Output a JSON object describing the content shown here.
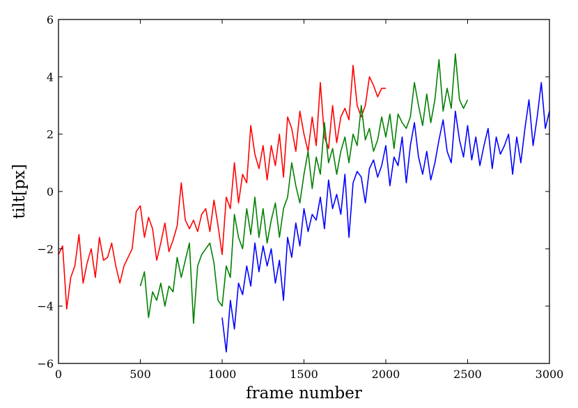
{
  "chart_data": {
    "type": "line",
    "title": "",
    "xlabel": "frame number",
    "ylabel": "tilt[px]",
    "xlim": [
      0,
      3000
    ],
    "ylim": [
      -6,
      6
    ],
    "xticks": [
      0,
      500,
      1000,
      1500,
      2000,
      2500,
      3000
    ],
    "yticks": [
      -6,
      -4,
      -2,
      0,
      2,
      4,
      6
    ],
    "xtick_labels": [
      "0",
      "500",
      "1000",
      "1500",
      "2000",
      "2500",
      "3000"
    ],
    "ytick_labels": [
      "−6",
      "−4",
      "−2",
      "0",
      "2",
      "4",
      "6"
    ],
    "grid": false,
    "legend": "none",
    "series": [
      {
        "color": "#ff0000",
        "x": [
          0,
          25,
          50,
          75,
          100,
          125,
          150,
          175,
          200,
          225,
          250,
          275,
          300,
          325,
          350,
          375,
          400,
          425,
          450,
          475,
          500,
          525,
          550,
          575,
          600,
          625,
          650,
          675,
          700,
          725,
          750,
          775,
          800,
          825,
          850,
          875,
          900,
          925,
          950,
          975,
          1000,
          1025,
          1050,
          1075,
          1100,
          1125,
          1150,
          1175,
          1200,
          1225,
          1250,
          1275,
          1300,
          1325,
          1350,
          1375,
          1400,
          1425,
          1450,
          1475,
          1500,
          1525,
          1550,
          1575,
          1600,
          1625,
          1650,
          1675,
          1700,
          1725,
          1750,
          1775,
          1800,
          1825,
          1850,
          1875,
          1900,
          1925,
          1950,
          1975,
          2000
        ],
        "y": [
          -2.2,
          -1.9,
          -4.1,
          -3.0,
          -2.6,
          -1.5,
          -3.2,
          -2.5,
          -2.0,
          -3.0,
          -1.6,
          -2.4,
          -2.3,
          -1.8,
          -2.6,
          -3.2,
          -2.6,
          -2.3,
          -2.0,
          -0.7,
          -0.5,
          -1.6,
          -0.9,
          -1.3,
          -2.4,
          -1.8,
          -1.1,
          -2.1,
          -1.7,
          -1.2,
          0.3,
          -1.0,
          -1.3,
          -1.0,
          -1.4,
          -0.8,
          -0.6,
          -1.4,
          -0.3,
          -1.2,
          -2.2,
          -0.2,
          -0.6,
          1.0,
          -0.4,
          0.6,
          0.3,
          2.3,
          1.3,
          0.8,
          1.6,
          0.4,
          1.6,
          0.9,
          2.0,
          0.5,
          2.6,
          2.2,
          1.4,
          2.8,
          2.0,
          1.4,
          2.6,
          1.6,
          3.8,
          1.9,
          1.5,
          3.0,
          1.7,
          2.6,
          2.9,
          2.5,
          4.4,
          3.0,
          2.6,
          3.0,
          4.0,
          3.7,
          3.3,
          3.6,
          3.6
        ]
      },
      {
        "color": "#008000",
        "x": [
          500,
          525,
          550,
          575,
          600,
          625,
          650,
          675,
          700,
          725,
          750,
          775,
          800,
          825,
          850,
          875,
          900,
          925,
          950,
          975,
          1000,
          1025,
          1050,
          1075,
          1100,
          1125,
          1150,
          1175,
          1200,
          1225,
          1250,
          1275,
          1300,
          1325,
          1350,
          1375,
          1400,
          1425,
          1450,
          1475,
          1500,
          1525,
          1550,
          1575,
          1600,
          1625,
          1650,
          1675,
          1700,
          1725,
          1750,
          1775,
          1800,
          1825,
          1850,
          1875,
          1900,
          1925,
          1950,
          1975,
          2000,
          2025,
          2050,
          2075,
          2100,
          2125,
          2150,
          2175,
          2200,
          2225,
          2250,
          2275,
          2300,
          2325,
          2350,
          2375,
          2400,
          2425,
          2450,
          2475,
          2500
        ],
        "y": [
          -3.3,
          -2.8,
          -4.4,
          -3.5,
          -3.8,
          -3.2,
          -4.0,
          -3.3,
          -3.5,
          -2.3,
          -3.0,
          -2.4,
          -1.8,
          -4.6,
          -2.6,
          -2.2,
          -2.0,
          -1.8,
          -2.5,
          -3.8,
          -4.0,
          -2.6,
          -3.0,
          -0.8,
          -1.6,
          -2.0,
          -0.6,
          -1.5,
          -0.2,
          -1.6,
          -0.6,
          -1.8,
          -1.0,
          -0.4,
          -1.6,
          -0.6,
          -0.2,
          1.0,
          0.2,
          -0.4,
          0.6,
          1.4,
          0.1,
          1.2,
          0.6,
          2.4,
          1.0,
          1.5,
          0.6,
          1.4,
          1.9,
          1.0,
          2.0,
          1.6,
          3.0,
          1.8,
          2.2,
          1.4,
          1.8,
          2.6,
          1.9,
          2.7,
          1.5,
          2.7,
          2.4,
          2.2,
          2.6,
          3.8,
          3.0,
          2.3,
          3.4,
          2.4,
          3.2,
          4.6,
          2.8,
          3.6,
          2.9,
          4.8,
          3.2,
          2.9,
          3.2
        ]
      },
      {
        "color": "#0000ff",
        "x": [
          1000,
          1025,
          1050,
          1075,
          1100,
          1125,
          1150,
          1175,
          1200,
          1225,
          1250,
          1275,
          1300,
          1325,
          1350,
          1375,
          1400,
          1425,
          1450,
          1475,
          1500,
          1525,
          1550,
          1575,
          1600,
          1625,
          1650,
          1675,
          1700,
          1725,
          1750,
          1775,
          1800,
          1825,
          1850,
          1875,
          1900,
          1925,
          1950,
          1975,
          2000,
          2025,
          2050,
          2075,
          2100,
          2125,
          2150,
          2175,
          2200,
          2225,
          2250,
          2275,
          2300,
          2325,
          2350,
          2375,
          2400,
          2425,
          2450,
          2475,
          2500,
          2525,
          2550,
          2575,
          2600,
          2625,
          2650,
          2675,
          2700,
          2725,
          2750,
          2775,
          2800,
          2825,
          2850,
          2875,
          2900,
          2925,
          2950,
          2975,
          3000
        ],
        "y": [
          -4.4,
          -5.6,
          -3.8,
          -4.8,
          -3.2,
          -3.6,
          -2.6,
          -3.3,
          -1.8,
          -2.8,
          -1.9,
          -2.6,
          -2.0,
          -3.2,
          -2.4,
          -3.8,
          -1.6,
          -2.3,
          -1.1,
          -1.9,
          -0.6,
          -1.4,
          -0.8,
          -1.0,
          -0.2,
          -1.3,
          0.4,
          -0.6,
          -0.1,
          -0.8,
          0.6,
          -1.6,
          0.3,
          0.7,
          0.5,
          -0.4,
          0.8,
          1.1,
          0.5,
          0.9,
          1.6,
          0.2,
          1.2,
          0.9,
          1.9,
          0.3,
          1.6,
          2.4,
          1.2,
          0.6,
          1.4,
          0.4,
          1.0,
          1.8,
          2.5,
          1.4,
          1.0,
          2.8,
          1.8,
          1.2,
          2.3,
          1.1,
          1.9,
          0.9,
          1.6,
          2.2,
          0.8,
          1.9,
          1.3,
          1.6,
          2.0,
          0.6,
          1.9,
          1.0,
          2.2,
          3.2,
          1.6,
          2.6,
          3.8,
          2.2,
          2.8
        ]
      }
    ]
  }
}
